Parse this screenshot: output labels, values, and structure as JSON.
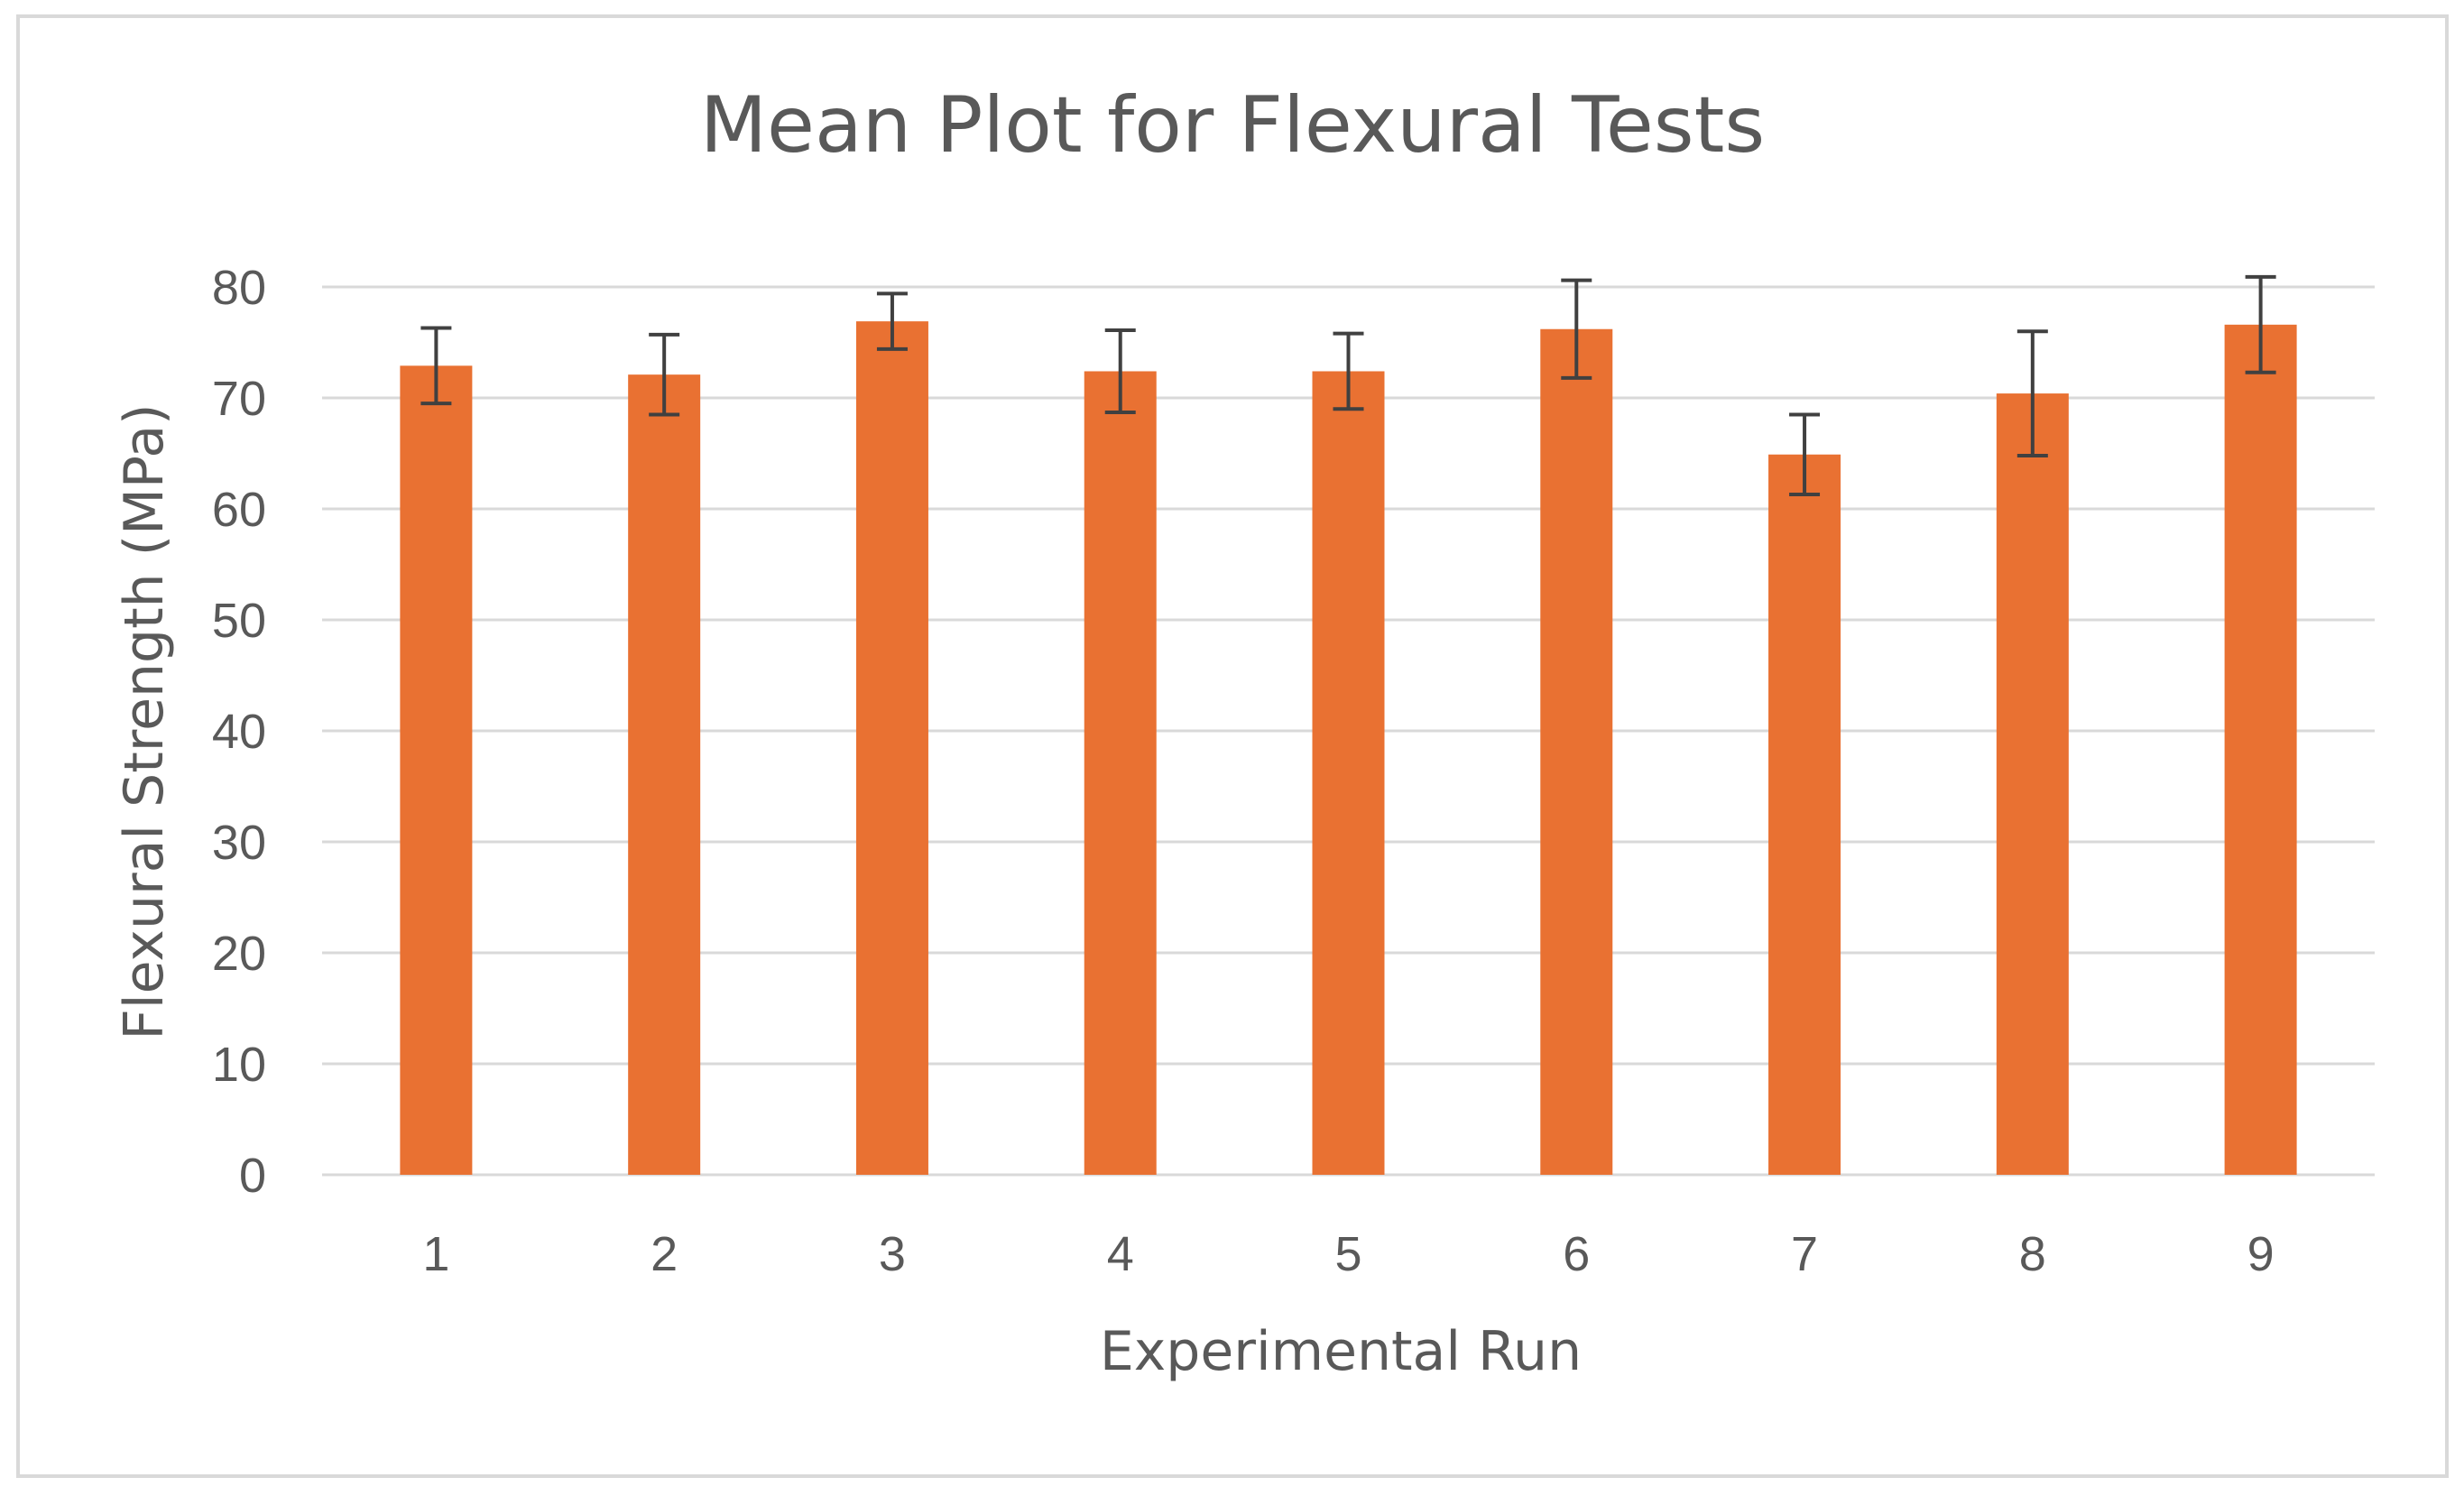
{
  "chart_data": {
    "type": "bar",
    "title": "Mean Plot for Flexural Tests",
    "xlabel": "Experimental Run",
    "ylabel": "Flexural Strength (MPa)",
    "categories": [
      "1",
      "2",
      "3",
      "4",
      "5",
      "6",
      "7",
      "8",
      "9"
    ],
    "values": [
      72.9,
      72.1,
      76.9,
      72.4,
      72.4,
      76.2,
      64.9,
      70.4,
      76.6
    ],
    "errors": [
      3.4,
      3.6,
      2.5,
      3.7,
      3.4,
      4.4,
      3.6,
      5.6,
      4.3
    ],
    "ylim": [
      0,
      80
    ],
    "yticks": [
      "0",
      "10",
      "20",
      "30",
      "40",
      "50",
      "60",
      "70",
      "80"
    ],
    "grid": true,
    "legend": "none",
    "colors": {
      "bar": "#E97132",
      "grid": "#D9D9D9",
      "error_bar": "#404040",
      "border": "#D9D9D9",
      "text": "#595959"
    }
  }
}
